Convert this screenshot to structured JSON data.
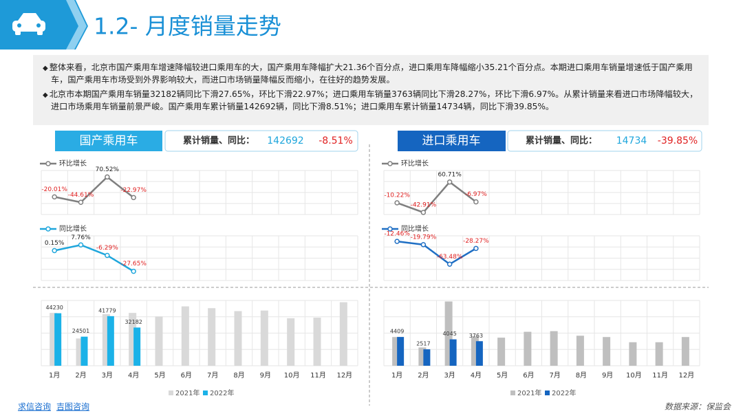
{
  "header": {
    "title": "1.2- 月度销量走势"
  },
  "bullets": [
    "整体来看，北京市国产乘用车增速降幅较进口乘用车的大，国产乘用车降幅扩大21.36个百分点，进口乘用车降幅缩小35.21个百分点。本期进口乘用车销量增速低于国产乘用车，国产乘用车市场受到外界影响较大，而进口市场销量降幅反而缩小，在往好的趋势发展。",
    "北京市本期国产乘用车销量32182辆同比下滑27.65%，环比下滑22.97%；进口乘用车销量3763辆同比下滑28.27%，环比下滑6.97%。从累计销量来看进口市场降幅较大，进口市场乘用车销量前景严峻。国产乘用车累计销量142692辆，同比下滑8.51%；进口乘用车累计销量14734辆，同比下滑39.85%。"
  ],
  "panels": [
    {
      "tab": "国产乘用车",
      "summary_label": "累计销量、同比：",
      "total": "142692",
      "yoy": "-8.51%"
    },
    {
      "tab": "进口乘用车",
      "summary_label": "累计销量、同比：",
      "total": "14734",
      "yoy": "-39.85%"
    }
  ],
  "chart_data": [
    {
      "type": "line",
      "ylim": [
        -100,
        100
      ],
      "series": [
        {
          "name": "环比增长",
          "color": "#7f7f7f",
          "values": [
            -20.01,
            -44.61,
            70.52,
            -22.97
          ],
          "value_labels": [
            "-20.01%",
            "-44.61%",
            "70.52%",
            "-22.97%"
          ]
        }
      ]
    },
    {
      "type": "line",
      "ylim": [
        -40,
        20
      ],
      "series": [
        {
          "name": "同比增长",
          "color": "#1ea6dc",
          "values": [
            0.15,
            7.76,
            -6.29,
            -27.65
          ],
          "value_labels": [
            "0.15%",
            "7.76%",
            "-6.29%",
            "-27.65%"
          ]
        }
      ]
    },
    {
      "type": "bar",
      "ylim": [
        0,
        55000
      ],
      "categories": [
        "1月",
        "2月",
        "3月",
        "4月",
        "5月",
        "6月",
        "7月",
        "8月",
        "9月",
        "10月",
        "11月",
        "12月"
      ],
      "series": [
        {
          "name": "2021年",
          "color": "#d9d9d9",
          "values": [
            44500,
            23000,
            43500,
            44500,
            41500,
            50000,
            48500,
            46000,
            46500,
            40000,
            40500,
            53500
          ]
        },
        {
          "name": "2022年",
          "color": "#1bb2e8",
          "values": [
            44230,
            24501,
            41779,
            32182,
            null,
            null,
            null,
            null,
            null,
            null,
            null,
            null
          ]
        }
      ]
    },
    {
      "type": "line",
      "ylim": [
        -50,
        100
      ],
      "series": [
        {
          "name": "环比增长",
          "color": "#7f7f7f",
          "values": [
            -10.22,
            -42.91,
            60.71,
            -6.97
          ],
          "value_labels": [
            "-10.22%",
            "-42.91%",
            "60.71%",
            "-6.97%"
          ]
        }
      ]
    },
    {
      "type": "line",
      "ylim": [
        -100,
        0
      ],
      "series": [
        {
          "name": "同比增长",
          "color": "#1f6fc4",
          "values": [
            -12.46,
            -19.79,
            -63.48,
            -28.27
          ],
          "value_labels": [
            "-12.46%",
            "-19.79%",
            "-63.48%",
            "-28.27%"
          ]
        }
      ]
    },
    {
      "type": "bar",
      "ylim": [
        0,
        10000
      ],
      "categories": [
        "1月",
        "2月",
        "3月",
        "4月",
        "5月",
        "6月",
        "7月",
        "8月",
        "9月",
        "10月",
        "11月",
        "12月"
      ],
      "series": [
        {
          "name": "2021年",
          "color": "#bfbfbf",
          "values": [
            4400,
            2800,
            9840,
            4500,
            4300,
            5200,
            5300,
            4600,
            4400,
            3600,
            3600,
            4400
          ]
        },
        {
          "name": "2022年",
          "color": "#1565c0",
          "values": [
            4409,
            2517,
            4045,
            3763,
            null,
            null,
            null,
            null,
            null,
            null,
            null,
            null
          ]
        }
      ]
    }
  ],
  "footer": {
    "links": [
      "求信咨询",
      "吉图咨询"
    ],
    "source": "数据来源：保监会"
  }
}
